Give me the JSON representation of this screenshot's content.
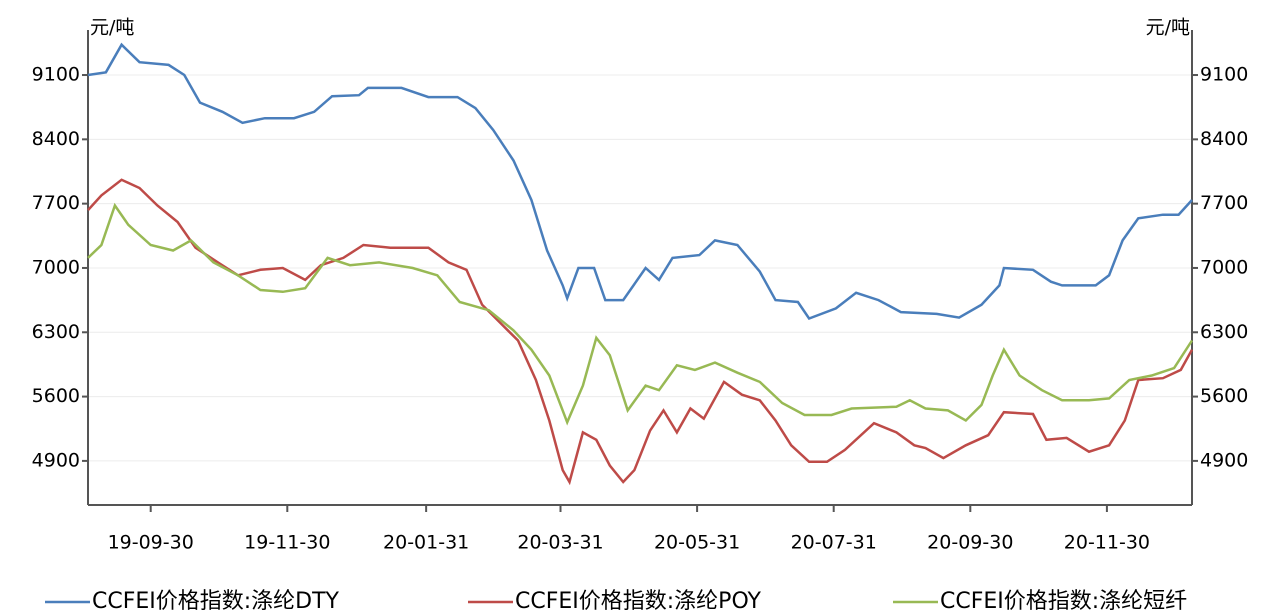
{
  "chart_data": {
    "type": "line",
    "y_label": "元/吨",
    "y2_label": "元/吨",
    "xlim": [
      "19-09-02",
      "21-01-07"
    ],
    "xticks": [
      "19-09-30",
      "19-11-30",
      "20-01-31",
      "20-03-31",
      "20-05-31",
      "20-07-31",
      "20-09-30",
      "20-11-30"
    ],
    "ylim": [
      4420,
      9590
    ],
    "yticks": [
      4900,
      5600,
      6300,
      7000,
      7700,
      8400,
      9100
    ],
    "y2lim": [
      4420,
      9590
    ],
    "y2ticks": [
      4900,
      5600,
      6300,
      7000,
      7700,
      8400,
      9100
    ],
    "grid": true,
    "legend": "bottom",
    "series": [
      {
        "name": "CCFEI价格指数:涤纶DTY",
        "color": "#4a7ebb",
        "x": [
          "19-09-02",
          "19-09-10",
          "19-09-17",
          "19-09-25",
          "19-10-08",
          "19-10-15",
          "19-10-22",
          "19-11-01",
          "19-11-10",
          "19-11-20",
          "19-12-03",
          "19-12-12",
          "19-12-20",
          "20-01-01",
          "20-01-05",
          "20-01-20",
          "20-02-01",
          "20-02-14",
          "20-02-22",
          "20-03-01",
          "20-03-10",
          "20-03-18",
          "20-03-25",
          "20-04-01",
          "20-04-03",
          "20-04-08",
          "20-04-15",
          "20-04-20",
          "20-04-28",
          "20-05-08",
          "20-05-14",
          "20-05-20",
          "20-06-01",
          "20-06-08",
          "20-06-18",
          "20-06-28",
          "20-07-05",
          "20-07-15",
          "20-07-20",
          "20-08-01",
          "20-08-10",
          "20-08-20",
          "20-08-30",
          "20-09-15",
          "20-09-25",
          "20-10-05",
          "20-10-13",
          "20-10-15",
          "20-10-28",
          "20-11-05",
          "20-11-10",
          "20-11-25",
          "20-12-01",
          "20-12-07",
          "20-12-14",
          "20-12-25",
          "21-01-01",
          "21-01-07"
        ],
        "values": [
          9100,
          9130,
          9430,
          9240,
          9210,
          9100,
          8800,
          8700,
          8580,
          8630,
          8630,
          8700,
          8870,
          8880,
          8960,
          8960,
          8860,
          8860,
          8740,
          8500,
          8170,
          7740,
          7190,
          6810,
          6670,
          7000,
          7000,
          6650,
          6650,
          7000,
          6870,
          7110,
          7140,
          7300,
          7250,
          6960,
          6650,
          6630,
          6450,
          6560,
          6730,
          6650,
          6520,
          6500,
          6460,
          6600,
          6810,
          7000,
          6980,
          6850,
          6810,
          6810,
          6920,
          7300,
          7540,
          7580,
          7580,
          7740
        ]
      },
      {
        "name": "CCFEI价格指数:涤纶POY",
        "color": "#be4b48",
        "x": [
          "19-09-02",
          "19-09-08",
          "19-09-17",
          "19-09-25",
          "19-10-03",
          "19-10-12",
          "19-10-20",
          "19-10-30",
          "19-11-08",
          "19-11-18",
          "19-11-28",
          "19-12-08",
          "19-12-15",
          "19-12-25",
          "20-01-03",
          "20-01-15",
          "20-02-01",
          "20-02-10",
          "20-02-18",
          "20-02-25",
          "20-03-05",
          "20-03-12",
          "20-03-20",
          "20-03-26",
          "20-04-01",
          "20-04-04",
          "20-04-10",
          "20-04-16",
          "20-04-22",
          "20-04-28",
          "20-05-03",
          "20-05-10",
          "20-05-16",
          "20-05-22",
          "20-05-28",
          "20-06-03",
          "20-06-12",
          "20-06-20",
          "20-06-28",
          "20-07-05",
          "20-07-12",
          "20-07-20",
          "20-07-28",
          "20-08-05",
          "20-08-18",
          "20-08-28",
          "20-09-05",
          "20-09-10",
          "20-09-18",
          "20-09-28",
          "20-10-08",
          "20-10-15",
          "20-10-28",
          "20-11-03",
          "20-11-12",
          "20-11-22",
          "20-12-01",
          "20-12-08",
          "20-12-14",
          "20-12-25",
          "21-01-02",
          "21-01-07"
        ],
        "values": [
          7630,
          7790,
          7960,
          7870,
          7680,
          7500,
          7220,
          7060,
          6920,
          6980,
          7000,
          6870,
          7030,
          7110,
          7250,
          7220,
          7220,
          7060,
          6980,
          6600,
          6380,
          6210,
          5780,
          5340,
          4800,
          4670,
          5210,
          5130,
          4850,
          4670,
          4800,
          5230,
          5450,
          5210,
          5470,
          5360,
          5760,
          5620,
          5560,
          5340,
          5070,
          4890,
          4890,
          5020,
          5310,
          5210,
          5070,
          5040,
          4930,
          5070,
          5180,
          5430,
          5410,
          5130,
          5150,
          5000,
          5070,
          5340,
          5780,
          5800,
          5890,
          6110
        ]
      },
      {
        "name": "CCFEI价格指数:涤纶短纤",
        "color": "#98b954",
        "x": [
          "19-09-02",
          "19-09-08",
          "19-09-14",
          "19-09-20",
          "19-09-30",
          "19-10-10",
          "19-10-18",
          "19-10-28",
          "19-11-08",
          "19-11-18",
          "19-11-28",
          "19-12-08",
          "19-12-18",
          "19-12-28",
          "20-01-10",
          "20-01-25",
          "20-02-05",
          "20-02-15",
          "20-02-28",
          "20-03-10",
          "20-03-18",
          "20-03-26",
          "20-04-03",
          "20-04-10",
          "20-04-16",
          "20-04-22",
          "20-04-30",
          "20-05-08",
          "20-05-14",
          "20-05-22",
          "20-05-30",
          "20-06-08",
          "20-06-18",
          "20-06-28",
          "20-07-08",
          "20-07-18",
          "20-07-30",
          "20-08-08",
          "20-08-28",
          "20-09-03",
          "20-09-10",
          "20-09-20",
          "20-09-28",
          "20-10-05",
          "20-10-10",
          "20-10-15",
          "20-10-22",
          "20-11-01",
          "20-11-10",
          "20-11-22",
          "20-12-01",
          "20-12-10",
          "20-12-20",
          "20-12-30",
          "21-01-07"
        ],
        "values": [
          7110,
          7250,
          7680,
          7470,
          7250,
          7190,
          7300,
          7060,
          6920,
          6760,
          6740,
          6780,
          7110,
          7030,
          7060,
          7000,
          6920,
          6630,
          6540,
          6320,
          6110,
          5830,
          5320,
          5720,
          6240,
          6050,
          5450,
          5720,
          5670,
          5940,
          5890,
          5970,
          5860,
          5760,
          5530,
          5400,
          5400,
          5470,
          5490,
          5560,
          5470,
          5450,
          5340,
          5510,
          5830,
          6110,
          5830,
          5670,
          5560,
          5560,
          5580,
          5780,
          5830,
          5910,
          6210
        ]
      }
    ]
  }
}
